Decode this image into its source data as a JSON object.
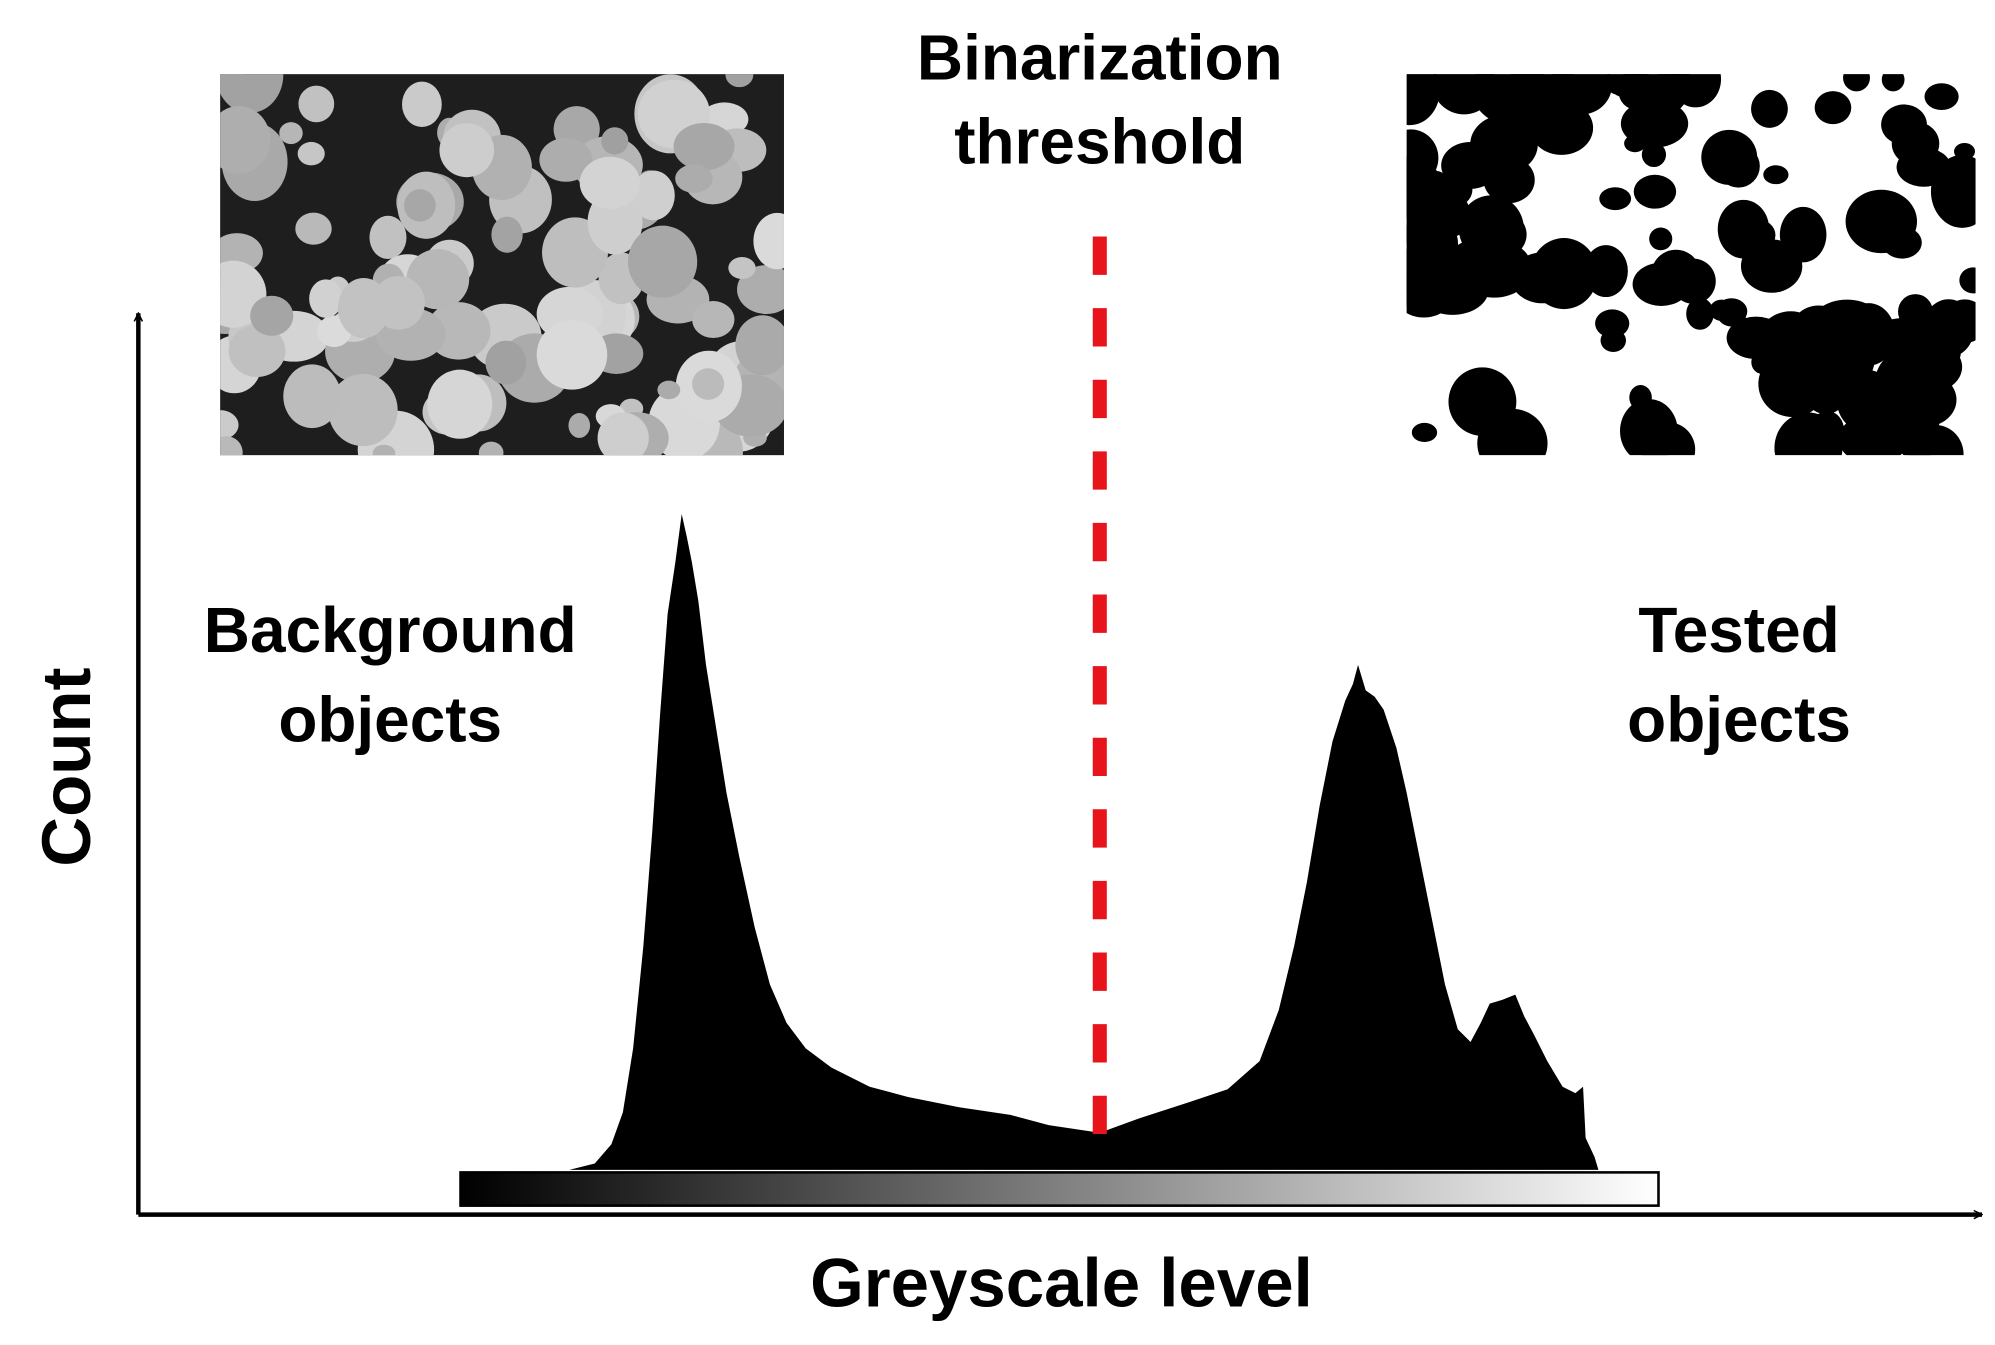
{
  "threshold_label": [
    "Binarization",
    "threshold"
  ],
  "background_label": [
    "Background",
    "objects"
  ],
  "tested_label": [
    "Tested",
    "objects"
  ],
  "y_axis_label": "Count",
  "x_axis_label": "Greyscale level"
}
